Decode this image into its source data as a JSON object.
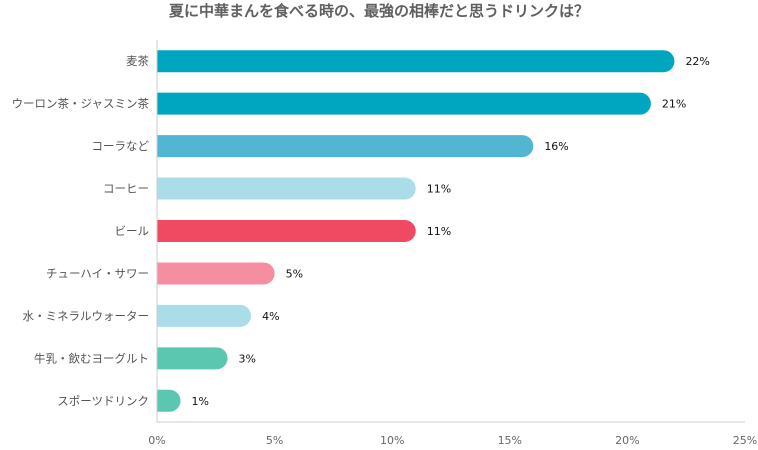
{
  "chart_data": {
    "type": "bar",
    "orientation": "horizontal",
    "title": "夏に中華まんを食べる時の、最強の相棒だと思うドリンクは？",
    "categories": [
      "麦茶",
      "ウーロン茶・ジャスミン茶",
      "コーラなど",
      "コーヒー",
      "ビール",
      "チューハイ・サワー",
      "水・ミネラルウォーター",
      "牛乳・飲むヨーグルト",
      "スポーツドリンク"
    ],
    "values": [
      22,
      21,
      16,
      11,
      11,
      5,
      4,
      3,
      1
    ],
    "value_labels": [
      "22%",
      "21%",
      "16%",
      "11%",
      "11%",
      "5%",
      "4%",
      "3%",
      "1%"
    ],
    "colors": [
      "#00a5c0",
      "#00a5c0",
      "#52b6d3",
      "#abdde9",
      "#f04a63",
      "#f58ea0",
      "#abdde9",
      "#5cc7b1",
      "#5cc7b1"
    ],
    "xlim": [
      0,
      25
    ],
    "xticks": [
      "0%",
      "5%",
      "10%",
      "15%",
      "20%",
      "25%"
    ],
    "xtick_values": [
      0,
      5,
      10,
      15,
      20,
      25
    ],
    "grid": false
  }
}
